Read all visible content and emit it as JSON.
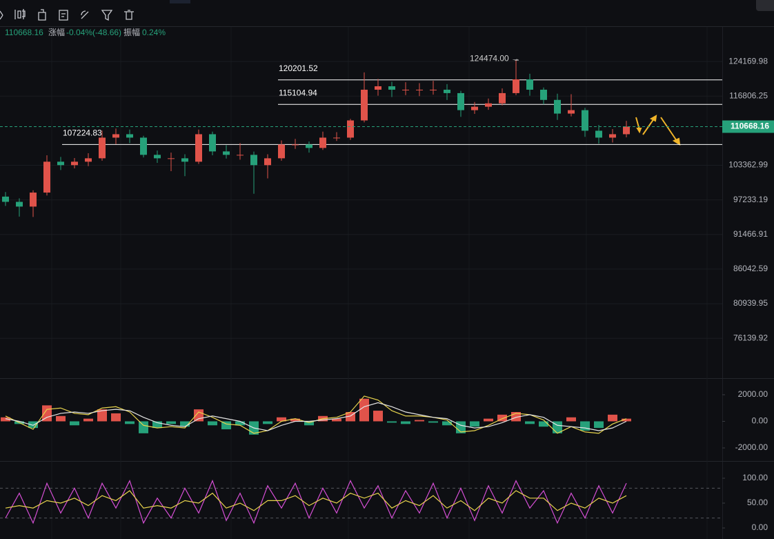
{
  "header": {
    "close": 110668.16,
    "change_label": "涨幅",
    "change": "-0.04%(-48.66)",
    "amplitude_label": "振幅",
    "amplitude": "0.24%"
  },
  "chart_data": [
    {
      "type": "candlestick",
      "open": [
        97800,
        96900,
        96090,
        98500,
        104020,
        103390,
        104020,
        104650,
        108540,
        109200,
        108540,
        105290,
        104650,
        104650,
        104020,
        109200,
        105930,
        105290,
        105290,
        103390,
        104650,
        107230,
        107230,
        106580,
        108540,
        108540,
        111890,
        118130,
        118850,
        118130,
        118130,
        118130,
        118130,
        117420,
        113940,
        114630,
        115320,
        117420,
        120310,
        118130,
        116020,
        113250,
        113940,
        109870,
        108540,
        109200
      ],
      "high": [
        98600,
        97500,
        98900,
        105200,
        104900,
        104700,
        105600,
        109900,
        110300,
        110100,
        108900,
        106100,
        105700,
        105400,
        110100,
        109700,
        107100,
        107500,
        105900,
        105400,
        108000,
        108300,
        107800,
        109700,
        109600,
        112200,
        121800,
        120400,
        119800,
        119700,
        119500,
        120000,
        119300,
        117900,
        115600,
        116300,
        118400,
        124474,
        121500,
        118600,
        117300,
        117200,
        114400,
        111000,
        110200,
        111800
      ],
      "low": [
        96200,
        94400,
        94350,
        98000,
        102500,
        102800,
        103200,
        104200,
        107300,
        107500,
        104800,
        103800,
        102300,
        101400,
        103600,
        105200,
        104600,
        104400,
        98300,
        101000,
        104200,
        106400,
        105700,
        106200,
        107900,
        108100,
        111500,
        116900,
        116600,
        117000,
        116800,
        117100,
        116000,
        112600,
        113200,
        114000,
        114900,
        117000,
        116900,
        115100,
        112000,
        112700,
        108700,
        107400,
        107600,
        108600
      ],
      "close": [
        96900,
        96090,
        98500,
        104020,
        103390,
        104020,
        104650,
        108540,
        109200,
        108540,
        105290,
        104650,
        104650,
        104020,
        109200,
        105930,
        105290,
        105290,
        103390,
        104650,
        107230,
        107230,
        106580,
        108540,
        108540,
        111890,
        118130,
        118850,
        118130,
        118130,
        118130,
        118130,
        117420,
        113940,
        114630,
        115320,
        117420,
        120310,
        118130,
        116020,
        113250,
        113940,
        109870,
        108540,
        109200,
        110668.16
      ],
      "up_color": "#e0534a",
      "down_color": "#26a17a",
      "ylim": [
        71220,
        132150
      ],
      "log_scale": true,
      "yticks": [
        124169.98,
        116806.25,
        103362.99,
        97233.19,
        91466.91,
        86042.59,
        80939.95,
        76139.92
      ],
      "grid": true,
      "price_lines": [
        120201.52,
        115104.94,
        107224.83
      ],
      "line_color": "#ffffff",
      "high_marker": {
        "value": 124474,
        "label": "124474.00 →"
      },
      "last_price": 110668.16,
      "last_color": "#26a17a"
    },
    {
      "type": "macd",
      "histogram": [
        300,
        -200,
        -500,
        1200,
        400,
        -300,
        200,
        900,
        600,
        -200,
        -900,
        -500,
        -200,
        -400,
        900,
        -300,
        -600,
        -300,
        -1000,
        -200,
        300,
        200,
        -300,
        400,
        200,
        700,
        1700,
        800,
        -100,
        -200,
        100,
        -100,
        -300,
        -900,
        -400,
        200,
        500,
        700,
        -200,
        -400,
        -900,
        300,
        -700,
        -500,
        500,
        200
      ],
      "dif": [
        400,
        -100,
        -600,
        900,
        1000,
        600,
        500,
        1000,
        1100,
        700,
        -300,
        -500,
        -400,
        -500,
        700,
        300,
        -200,
        -300,
        -900,
        -700,
        0,
        200,
        -100,
        200,
        300,
        700,
        1900,
        1600,
        800,
        400,
        400,
        300,
        100,
        -800,
        -700,
        -300,
        200,
        600,
        500,
        100,
        -900,
        -400,
        -800,
        -900,
        -200,
        200
      ],
      "dea": [
        200,
        0,
        -300,
        300,
        600,
        700,
        600,
        800,
        900,
        800,
        300,
        -100,
        -300,
        -400,
        200,
        400,
        200,
        0,
        -500,
        -700,
        -300,
        0,
        0,
        100,
        200,
        400,
        1100,
        1400,
        1100,
        700,
        500,
        300,
        200,
        -300,
        -500,
        -400,
        -100,
        300,
        500,
        300,
        -300,
        -400,
        -500,
        -700,
        -500,
        0
      ],
      "up_color": "#e0534a",
      "down_color": "#26a17a",
      "dif_color": "#e8d44d",
      "dea_color": "#e6e6e6",
      "ylim": [
        -2310,
        2620
      ],
      "yticks": [
        {
          "value": 2000,
          "label": "2000.00"
        },
        {
          "value": 0,
          "label": "0.00"
        },
        {
          "value": -2000,
          "label": "-2000.00"
        }
      ]
    },
    {
      "type": "line",
      "series": [
        {
          "color": "#d64fd6",
          "values": [
            20,
            70,
            10,
            90,
            30,
            80,
            20,
            90,
            40,
            95,
            10,
            60,
            20,
            80,
            30,
            95,
            15,
            70,
            10,
            85,
            40,
            90,
            20,
            80,
            30,
            95,
            40,
            85,
            20,
            75,
            30,
            90,
            20,
            80,
            15,
            85,
            30,
            95,
            40,
            75,
            10,
            70,
            20,
            85,
            30,
            90
          ]
        },
        {
          "color": "#e8d44d",
          "values": [
            40,
            45,
            40,
            55,
            50,
            60,
            45,
            65,
            55,
            75,
            40,
            45,
            40,
            55,
            50,
            70,
            40,
            50,
            35,
            55,
            55,
            65,
            45,
            60,
            50,
            70,
            60,
            70,
            40,
            55,
            45,
            65,
            40,
            55,
            35,
            60,
            50,
            75,
            60,
            60,
            35,
            50,
            40,
            60,
            50,
            65
          ]
        }
      ],
      "ylim": [
        -18,
        118
      ],
      "yticks": [
        {
          "value": 100,
          "label": "100.00"
        },
        {
          "value": 50,
          "label": "50.00"
        },
        {
          "value": 0,
          "label": "0.00"
        }
      ],
      "levels": [
        20,
        80
      ]
    }
  ]
}
